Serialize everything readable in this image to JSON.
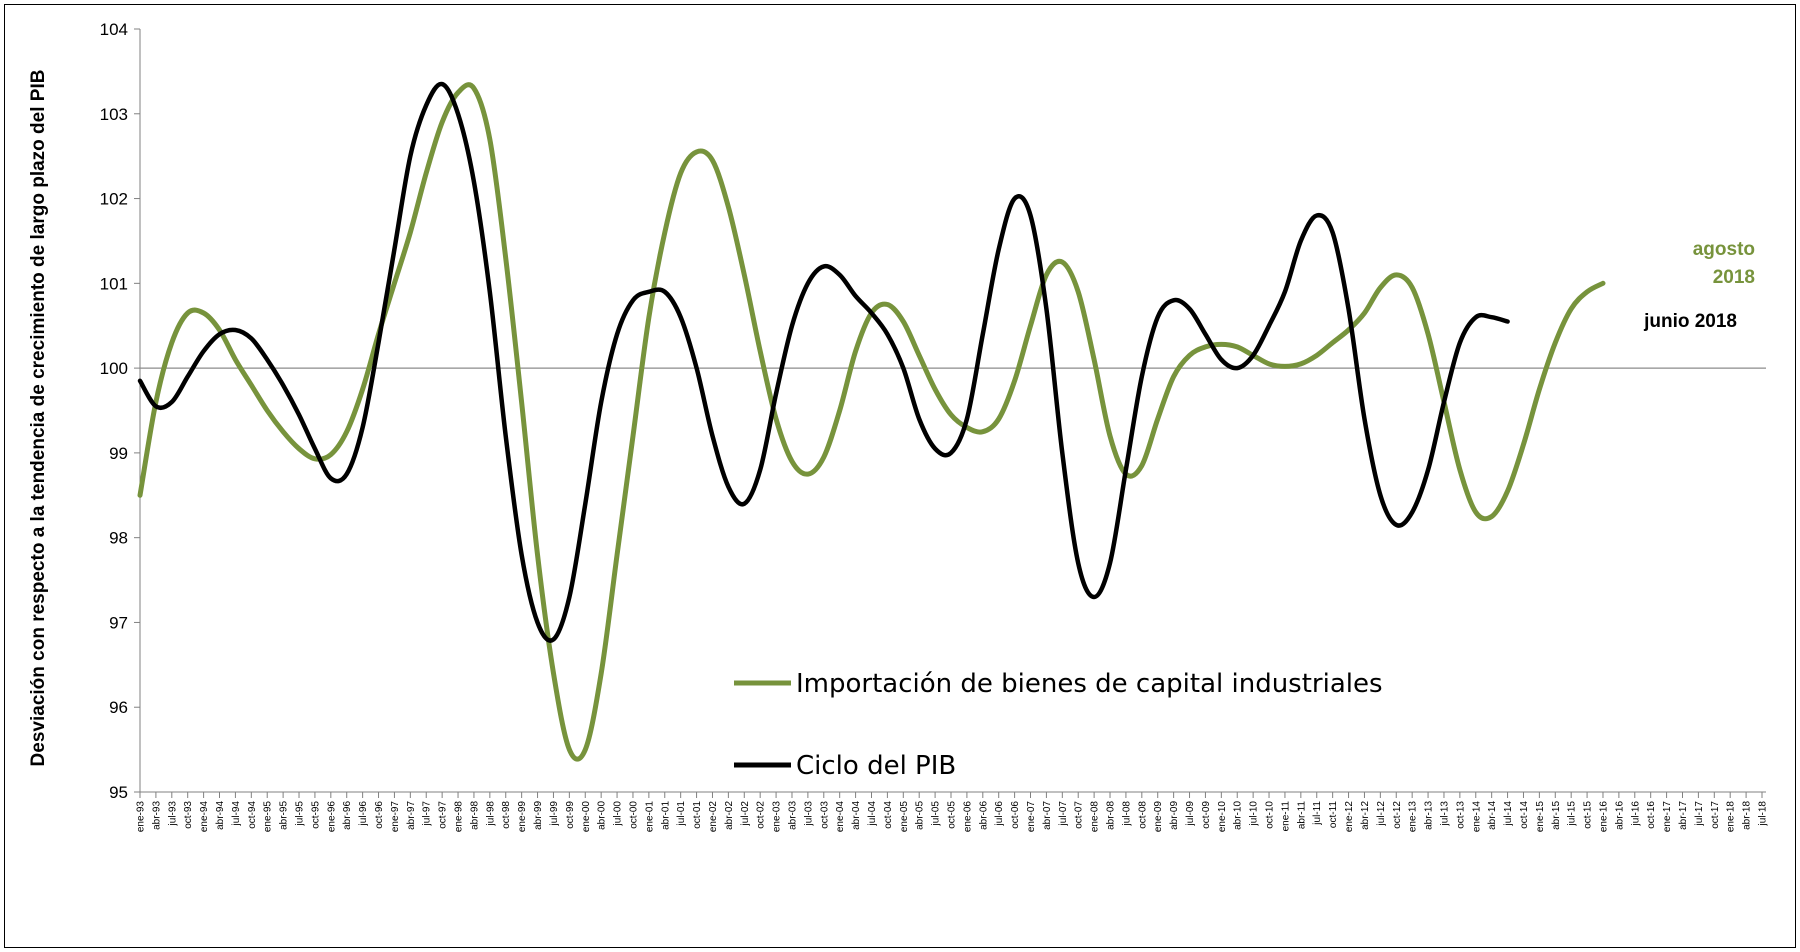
{
  "chart_data": {
    "type": "line",
    "ylabel": "Desviación con respecto a la tendencia de crecimiento de largo plazo del PIB",
    "xlabel": "",
    "ylim": [
      95,
      104
    ],
    "yticks": [
      95,
      96,
      97,
      98,
      99,
      100,
      101,
      102,
      103,
      104
    ],
    "reference_line": 100,
    "x_tick_labels": [
      "ene-93",
      "abr-93",
      "jul-93",
      "oct-93",
      "ene-94",
      "abr-94",
      "jul-94",
      "oct-94",
      "ene-95",
      "abr-95",
      "jul-95",
      "oct-95",
      "ene-96",
      "abr-96",
      "jul-96",
      "oct-96",
      "ene-97",
      "abr-97",
      "jul-97",
      "oct-97",
      "ene-98",
      "abr-98",
      "jul-98",
      "oct-98",
      "ene-99",
      "abr-99",
      "jul-99",
      "oct-99",
      "ene-00",
      "abr-00",
      "jul-00",
      "oct-00",
      "ene-01",
      "abr-01",
      "jul-01",
      "oct-01",
      "ene-02",
      "abr-02",
      "jul-02",
      "oct-02",
      "ene-03",
      "abr-03",
      "jul-03",
      "oct-03",
      "ene-04",
      "abr-04",
      "jul-04",
      "oct-04",
      "ene-05",
      "abr-05",
      "jul-05",
      "oct-05",
      "ene-06",
      "abr-06",
      "jul-06",
      "oct-06",
      "ene-07",
      "abr-07",
      "jul-07",
      "oct-07",
      "ene-08",
      "abr-08",
      "jul-08",
      "oct-08",
      "ene-09",
      "abr-09",
      "jul-09",
      "oct-09",
      "ene-10",
      "abr-10",
      "jul-10",
      "oct-10",
      "ene-11",
      "abr-11",
      "jul-11",
      "oct-11",
      "ene-12",
      "abr-12",
      "jul-12",
      "oct-12",
      "ene-13",
      "abr-13",
      "jul-13",
      "oct-13",
      "ene-14",
      "abr-14",
      "jul-14",
      "oct-14",
      "ene-15",
      "abr-15",
      "jul-15",
      "oct-15",
      "ene-16",
      "abr-16",
      "jul-16",
      "oct-16",
      "ene-17",
      "abr-17",
      "jul-17",
      "oct-17",
      "ene-18",
      "abr-18",
      "jul-18"
    ],
    "series": [
      {
        "name": "Importación de bienes de capital industriales",
        "color": "#77933C",
        "points": [
          [
            "ene-93",
            98.5
          ],
          [
            "abr-93",
            99.6
          ],
          [
            "jul-93",
            100.3
          ],
          [
            "oct-93",
            100.65
          ],
          [
            "ene-94",
            100.65
          ],
          [
            "abr-94",
            100.45
          ],
          [
            "jul-94",
            100.1
          ],
          [
            "oct-94",
            99.8
          ],
          [
            "ene-95",
            99.5
          ],
          [
            "abr-95",
            99.25
          ],
          [
            "jul-95",
            99.05
          ],
          [
            "oct-95",
            98.93
          ],
          [
            "ene-96",
            98.98
          ],
          [
            "abr-96",
            99.25
          ],
          [
            "jul-96",
            99.75
          ],
          [
            "oct-96",
            100.4
          ],
          [
            "ene-97",
            101.0
          ],
          [
            "abr-97",
            101.6
          ],
          [
            "jul-97",
            102.3
          ],
          [
            "oct-97",
            102.9
          ],
          [
            "ene-98",
            103.25
          ],
          [
            "abr-98",
            103.3
          ],
          [
            "jul-98",
            102.7
          ],
          [
            "oct-98",
            101.3
          ],
          [
            "ene-99",
            99.6
          ],
          [
            "abr-99",
            97.8
          ],
          [
            "jul-99",
            96.4
          ],
          [
            "oct-99",
            95.5
          ],
          [
            "ene-00",
            95.5
          ],
          [
            "abr-00",
            96.4
          ],
          [
            "jul-00",
            97.8
          ],
          [
            "oct-00",
            99.2
          ],
          [
            "ene-01",
            100.6
          ],
          [
            "abr-01",
            101.6
          ],
          [
            "jul-01",
            102.3
          ],
          [
            "oct-01",
            102.55
          ],
          [
            "ene-02",
            102.45
          ],
          [
            "abr-02",
            101.9
          ],
          [
            "jul-02",
            101.1
          ],
          [
            "oct-02",
            100.2
          ],
          [
            "ene-03",
            99.4
          ],
          [
            "abr-03",
            98.9
          ],
          [
            "jul-03",
            98.75
          ],
          [
            "oct-03",
            98.95
          ],
          [
            "ene-04",
            99.5
          ],
          [
            "abr-04",
            100.2
          ],
          [
            "jul-04",
            100.65
          ],
          [
            "oct-04",
            100.75
          ],
          [
            "ene-05",
            100.55
          ],
          [
            "abr-05",
            100.15
          ],
          [
            "jul-05",
            99.75
          ],
          [
            "oct-05",
            99.45
          ],
          [
            "ene-06",
            99.3
          ],
          [
            "abr-06",
            99.25
          ],
          [
            "jul-06",
            99.4
          ],
          [
            "oct-06",
            99.85
          ],
          [
            "ene-07",
            100.5
          ],
          [
            "abr-07",
            101.1
          ],
          [
            "jul-07",
            101.25
          ],
          [
            "oct-07",
            100.9
          ],
          [
            "ene-08",
            100.1
          ],
          [
            "abr-08",
            99.2
          ],
          [
            "jul-08",
            98.75
          ],
          [
            "oct-08",
            98.85
          ],
          [
            "ene-09",
            99.4
          ],
          [
            "abr-09",
            99.9
          ],
          [
            "jul-09",
            100.15
          ],
          [
            "oct-09",
            100.25
          ],
          [
            "ene-10",
            100.28
          ],
          [
            "abr-10",
            100.25
          ],
          [
            "jul-10",
            100.15
          ],
          [
            "oct-10",
            100.05
          ],
          [
            "ene-11",
            100.02
          ],
          [
            "abr-11",
            100.05
          ],
          [
            "jul-11",
            100.15
          ],
          [
            "oct-11",
            100.3
          ],
          [
            "ene-12",
            100.45
          ],
          [
            "abr-12",
            100.65
          ],
          [
            "jul-12",
            100.95
          ],
          [
            "oct-12",
            101.1
          ],
          [
            "ene-13",
            100.95
          ],
          [
            "abr-13",
            100.4
          ],
          [
            "jul-13",
            99.6
          ],
          [
            "oct-13",
            98.8
          ],
          [
            "ene-14",
            98.3
          ],
          [
            "abr-14",
            98.25
          ],
          [
            "jul-14",
            98.55
          ],
          [
            "oct-14",
            99.1
          ],
          [
            "ene-15",
            99.75
          ],
          [
            "abr-15",
            100.3
          ],
          [
            "jul-15",
            100.7
          ],
          [
            "oct-15",
            100.9
          ],
          [
            "ene-16",
            101.0
          ]
        ]
      },
      {
        "name": "Ciclo del PIB",
        "color": "#000000",
        "points": [
          [
            "ene-93",
            99.85
          ],
          [
            "abr-93",
            99.55
          ],
          [
            "jul-93",
            99.6
          ],
          [
            "oct-93",
            99.9
          ],
          [
            "ene-94",
            100.2
          ],
          [
            "abr-94",
            100.4
          ],
          [
            "jul-94",
            100.45
          ],
          [
            "oct-94",
            100.35
          ],
          [
            "ene-95",
            100.1
          ],
          [
            "abr-95",
            99.8
          ],
          [
            "jul-95",
            99.45
          ],
          [
            "oct-95",
            99.05
          ],
          [
            "ene-96",
            98.7
          ],
          [
            "abr-96",
            98.75
          ],
          [
            "jul-96",
            99.3
          ],
          [
            "oct-96",
            100.3
          ],
          [
            "ene-97",
            101.4
          ],
          [
            "abr-97",
            102.5
          ],
          [
            "jul-97",
            103.1
          ],
          [
            "oct-97",
            103.35
          ],
          [
            "ene-98",
            103.0
          ],
          [
            "abr-98",
            102.2
          ],
          [
            "jul-98",
            100.9
          ],
          [
            "oct-98",
            99.2
          ],
          [
            "ene-99",
            97.8
          ],
          [
            "abr-99",
            97.0
          ],
          [
            "jul-99",
            96.8
          ],
          [
            "oct-99",
            97.3
          ],
          [
            "ene-00",
            98.4
          ],
          [
            "abr-00",
            99.6
          ],
          [
            "jul-00",
            100.4
          ],
          [
            "oct-00",
            100.8
          ],
          [
            "ene-01",
            100.9
          ],
          [
            "abr-01",
            100.9
          ],
          [
            "jul-01",
            100.6
          ],
          [
            "oct-01",
            100.0
          ],
          [
            "ene-02",
            99.2
          ],
          [
            "abr-02",
            98.6
          ],
          [
            "jul-02",
            98.4
          ],
          [
            "oct-02",
            98.8
          ],
          [
            "ene-03",
            99.7
          ],
          [
            "abr-03",
            100.5
          ],
          [
            "jul-03",
            101.0
          ],
          [
            "oct-03",
            101.2
          ],
          [
            "ene-04",
            101.1
          ],
          [
            "abr-04",
            100.85
          ],
          [
            "jul-04",
            100.65
          ],
          [
            "oct-04",
            100.4
          ],
          [
            "ene-05",
            100.0
          ],
          [
            "abr-05",
            99.4
          ],
          [
            "jul-05",
            99.05
          ],
          [
            "oct-05",
            99.0
          ],
          [
            "ene-06",
            99.4
          ],
          [
            "abr-06",
            100.4
          ],
          [
            "jul-06",
            101.4
          ],
          [
            "oct-06",
            102.0
          ],
          [
            "ene-07",
            101.8
          ],
          [
            "abr-07",
            100.7
          ],
          [
            "jul-07",
            99.0
          ],
          [
            "oct-07",
            97.7
          ],
          [
            "ene-08",
            97.3
          ],
          [
            "abr-08",
            97.7
          ],
          [
            "jul-08",
            98.8
          ],
          [
            "oct-08",
            99.9
          ],
          [
            "ene-09",
            100.6
          ],
          [
            "abr-09",
            100.8
          ],
          [
            "jul-09",
            100.7
          ],
          [
            "oct-09",
            100.4
          ],
          [
            "ene-10",
            100.1
          ],
          [
            "abr-10",
            100.0
          ],
          [
            "jul-10",
            100.15
          ],
          [
            "oct-10",
            100.5
          ],
          [
            "ene-11",
            100.9
          ],
          [
            "abr-11",
            101.5
          ],
          [
            "jul-11",
            101.8
          ],
          [
            "oct-11",
            101.6
          ],
          [
            "ene-12",
            100.7
          ],
          [
            "abr-12",
            99.4
          ],
          [
            "jul-12",
            98.5
          ],
          [
            "oct-12",
            98.15
          ],
          [
            "ene-13",
            98.3
          ],
          [
            "abr-13",
            98.8
          ],
          [
            "jul-13",
            99.6
          ],
          [
            "oct-13",
            100.3
          ],
          [
            "ene-14",
            100.6
          ],
          [
            "abr-14",
            100.6
          ],
          [
            "jul-14",
            100.55
          ]
        ]
      }
    ],
    "legend": {
      "items": [
        {
          "label": "Importación de bienes de capital industriales",
          "color": "#77933C"
        },
        {
          "label": "Ciclo del PIB",
          "color": "#000000"
        }
      ],
      "position": "center-bottom"
    },
    "annotations": [
      {
        "text_line1": "agosto",
        "text_line2": "2018",
        "color": "#77933C"
      },
      {
        "text": "junio 2018",
        "color": "#000000"
      }
    ]
  }
}
